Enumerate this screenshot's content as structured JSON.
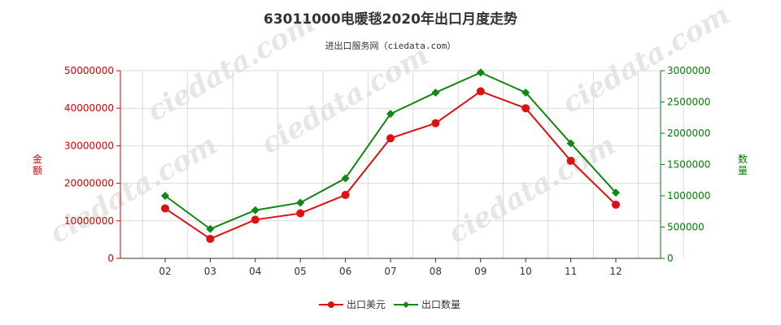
{
  "page": {
    "title": "63011000电暖毯2020年出口月度走势",
    "subtitle": "进出口服务网（ciedata.com）"
  },
  "colors": {
    "left_axis": "#dd0000",
    "right_axis": "#008000",
    "series_amount": "#dd1111",
    "series_quantity": "#118811",
    "grid": "#d9d9d9",
    "axis": "#333333"
  },
  "chart_data": {
    "type": "line",
    "title": "63011000电暖毯2020年出口月度走势",
    "subtitle": "进出口服务网（ciedata.com）",
    "categories": [
      "02",
      "03",
      "04",
      "05",
      "06",
      "07",
      "08",
      "09",
      "10",
      "11",
      "12"
    ],
    "y_left": {
      "label": "金额",
      "ylim": [
        0,
        50000000
      ],
      "ticks": [
        "0",
        "10000000",
        "20000000",
        "30000000",
        "40000000",
        "50000000"
      ]
    },
    "y_right": {
      "label": "数量",
      "ylim": [
        0,
        3000000
      ],
      "ticks": [
        "0",
        "500000",
        "1000000",
        "1500000",
        "2000000",
        "2500000",
        "3000000"
      ]
    },
    "series": [
      {
        "name": "出口美元",
        "axis": "left",
        "color": "#dd1111",
        "marker": "circle",
        "values": [
          13300000,
          5200000,
          10300000,
          12000000,
          16900000,
          32000000,
          36000000,
          44500000,
          40000000,
          26000000,
          14300000
        ]
      },
      {
        "name": "出口数量",
        "axis": "right",
        "color": "#118811",
        "marker": "diamond",
        "values": [
          1000000,
          470000,
          770000,
          890000,
          1280000,
          2310000,
          2650000,
          2970000,
          2650000,
          1840000,
          1050000
        ]
      }
    ],
    "grid": true,
    "legend": "bottom-center"
  }
}
